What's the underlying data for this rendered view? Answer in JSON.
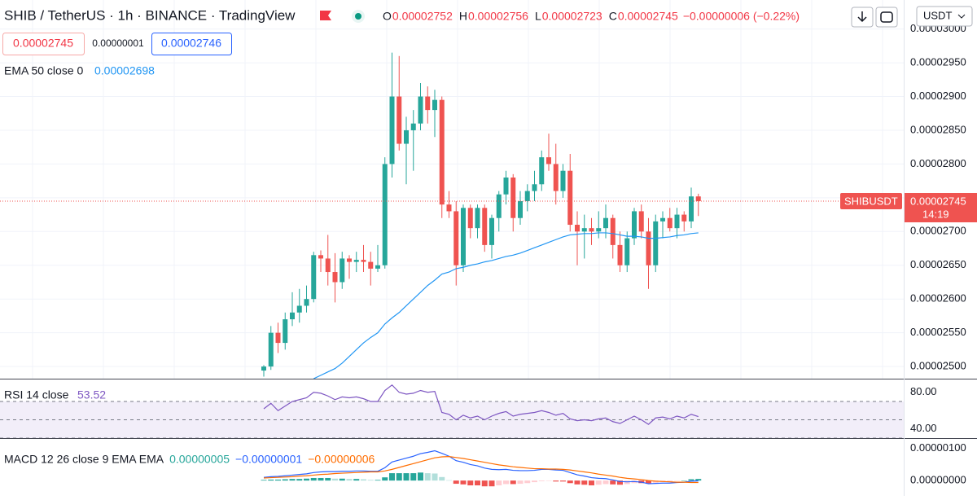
{
  "header": {
    "symbol": "SHIB / TetherUS · 1h · BINANCE · TradingView",
    "ohlc": [
      {
        "key": "O",
        "value": "0.00002752"
      },
      {
        "key": "H",
        "value": "0.00002756"
      },
      {
        "key": "L",
        "value": "0.00002723"
      },
      {
        "key": "C",
        "value": "0.00002745"
      }
    ],
    "change": "−0.00000006 (−0.22%)",
    "sell": "0.00002745",
    "spread": "0.00000001",
    "buy": "0.00002746",
    "currency": "USDT"
  },
  "chart_data": [
    {
      "type": "candlestick",
      "symbol_tag": "SHIBUSDT",
      "last_label": "0.00002745",
      "countdown": "14:19",
      "color_up": "#26a69a",
      "color_down": "#ef5350",
      "open": [
        2.494e-05,
        2.5e-05,
        2.55e-05,
        2.535e-05,
        2.57e-05,
        2.58e-05,
        2.59e-05,
        2.6e-05,
        2.665e-05,
        2.66e-05,
        2.64e-05,
        2.625e-05,
        2.66e-05,
        2.655e-05,
        2.658e-05,
        2.655e-05,
        2.645e-05,
        2.65e-05,
        2.8e-05,
        2.9e-05,
        2.83e-05,
        2.85e-05,
        2.86e-05,
        2.9e-05,
        2.88e-05,
        2.895e-05,
        2.74e-05,
        2.73e-05,
        2.65e-05,
        2.735e-05,
        2.705e-05,
        2.735e-05,
        2.68e-05,
        2.72e-05,
        2.755e-05,
        2.78e-05,
        2.72e-05,
        2.745e-05,
        2.76e-05,
        2.77e-05,
        2.81e-05,
        2.8e-05,
        2.76e-05,
        2.79e-05,
        2.71e-05,
        2.7e-05,
        2.705e-05,
        2.7e-05,
        2.705e-05,
        2.72e-05,
        2.68e-05,
        2.65e-05,
        2.69e-05,
        2.73e-05,
        2.7e-05,
        2.65e-05,
        2.715e-05,
        2.72e-05,
        2.705e-05,
        2.725e-05,
        2.715e-05,
        2.752e-05
      ],
      "high": [
        2.502e-05,
        2.56e-05,
        2.565e-05,
        2.58e-05,
        2.61e-05,
        2.615e-05,
        2.62e-05,
        2.67e-05,
        2.672e-05,
        2.695e-05,
        2.668e-05,
        2.67e-05,
        2.665e-05,
        2.67e-05,
        2.68e-05,
        2.67e-05,
        2.68e-05,
        2.81e-05,
        2.965e-05,
        2.96e-05,
        2.87e-05,
        2.88e-05,
        2.92e-05,
        2.915e-05,
        2.91e-05,
        2.9e-05,
        2.76e-05,
        2.745e-05,
        2.74e-05,
        2.74e-05,
        2.74e-05,
        2.74e-05,
        2.725e-05,
        2.76e-05,
        2.79e-05,
        2.785e-05,
        2.76e-05,
        2.77e-05,
        2.79e-05,
        2.82e-05,
        2.845e-05,
        2.83e-05,
        2.8e-05,
        2.815e-05,
        2.73e-05,
        2.725e-05,
        2.72e-05,
        2.73e-05,
        2.74e-05,
        2.725e-05,
        2.7e-05,
        2.7e-05,
        2.735e-05,
        2.74e-05,
        2.72e-05,
        2.725e-05,
        2.73e-05,
        2.735e-05,
        2.735e-05,
        2.73e-05,
        2.765e-05,
        2.756e-05
      ],
      "low": [
        2.485e-05,
        2.495e-05,
        2.52e-05,
        2.525e-05,
        2.56e-05,
        2.565e-05,
        2.58e-05,
        2.595e-05,
        2.64e-05,
        2.62e-05,
        2.595e-05,
        2.615e-05,
        2.63e-05,
        2.64e-05,
        2.64e-05,
        2.62e-05,
        2.64e-05,
        2.645e-05,
        2.78e-05,
        2.82e-05,
        2.77e-05,
        2.79e-05,
        2.85e-05,
        2.86e-05,
        2.84e-05,
        2.72e-05,
        2.72e-05,
        2.62e-05,
        2.64e-05,
        2.69e-05,
        2.69e-05,
        2.67e-05,
        2.66e-05,
        2.7e-05,
        2.74e-05,
        2.7e-05,
        2.71e-05,
        2.73e-05,
        2.745e-05,
        2.76e-05,
        2.79e-05,
        2.74e-05,
        2.75e-05,
        2.7e-05,
        2.65e-05,
        2.66e-05,
        2.68e-05,
        2.69e-05,
        2.69e-05,
        2.66e-05,
        2.64e-05,
        2.64e-05,
        2.68e-05,
        2.69e-05,
        2.615e-05,
        2.64e-05,
        2.69e-05,
        2.7e-05,
        2.69e-05,
        2.7e-05,
        2.705e-05,
        2.723e-05
      ],
      "close": [
        2.5e-05,
        2.55e-05,
        2.535e-05,
        2.57e-05,
        2.58e-05,
        2.59e-05,
        2.6e-05,
        2.665e-05,
        2.66e-05,
        2.64e-05,
        2.625e-05,
        2.66e-05,
        2.655e-05,
        2.658e-05,
        2.655e-05,
        2.645e-05,
        2.65e-05,
        2.8e-05,
        2.9e-05,
        2.83e-05,
        2.85e-05,
        2.86e-05,
        2.9e-05,
        2.88e-05,
        2.895e-05,
        2.74e-05,
        2.73e-05,
        2.65e-05,
        2.735e-05,
        2.705e-05,
        2.735e-05,
        2.68e-05,
        2.72e-05,
        2.755e-05,
        2.78e-05,
        2.72e-05,
        2.745e-05,
        2.76e-05,
        2.77e-05,
        2.81e-05,
        2.8e-05,
        2.76e-05,
        2.79e-05,
        2.71e-05,
        2.7e-05,
        2.705e-05,
        2.7e-05,
        2.705e-05,
        2.72e-05,
        2.68e-05,
        2.65e-05,
        2.69e-05,
        2.73e-05,
        2.7e-05,
        2.65e-05,
        2.715e-05,
        2.72e-05,
        2.705e-05,
        2.725e-05,
        2.715e-05,
        2.752e-05,
        2.745e-05
      ],
      "ema": {
        "name": "EMA 50 close 0",
        "value_label": "0.00002698",
        "color": "#2196f3",
        "values": [
          null,
          null,
          null,
          null,
          null,
          null,
          null,
          2.482e-05,
          2.487e-05,
          2.492e-05,
          2.497e-05,
          2.505e-05,
          2.515e-05,
          2.525e-05,
          2.535e-05,
          2.543e-05,
          2.55e-05,
          2.563e-05,
          2.572e-05,
          2.58e-05,
          2.59e-05,
          2.6e-05,
          2.61e-05,
          2.62e-05,
          2.628e-05,
          2.637e-05,
          2.64e-05,
          2.645e-05,
          2.647e-05,
          2.65e-05,
          2.652e-05,
          2.655e-05,
          2.657e-05,
          2.66e-05,
          2.663e-05,
          2.665e-05,
          2.668e-05,
          2.672e-05,
          2.676e-05,
          2.68e-05,
          2.684e-05,
          2.688e-05,
          2.692e-05,
          2.695e-05,
          2.696e-05,
          2.697e-05,
          2.697e-05,
          2.698e-05,
          2.698e-05,
          2.697e-05,
          2.695e-05,
          2.693e-05,
          2.693e-05,
          2.692e-05,
          2.69e-05,
          2.69e-05,
          2.691e-05,
          2.692e-05,
          2.694e-05,
          2.695e-05,
          2.697e-05,
          2.698e-05
        ]
      },
      "ylim": [
        2.482e-05,
        3.043e-05
      ],
      "yticks": [
        {
          "value": 3e-05,
          "label": "0.00003000"
        },
        {
          "value": 2.95e-05,
          "label": "0.00002950"
        },
        {
          "value": 2.9e-05,
          "label": "0.00002900"
        },
        {
          "value": 2.85e-05,
          "label": "0.00002850"
        },
        {
          "value": 2.8e-05,
          "label": "0.00002800"
        },
        {
          "value": 2.75e-05,
          "label": "0.00002750"
        },
        {
          "value": 2.7e-05,
          "label": "0.00002700"
        },
        {
          "value": 2.65e-05,
          "label": "0.00002650"
        },
        {
          "value": 2.6e-05,
          "label": "0.00002600"
        },
        {
          "value": 2.55e-05,
          "label": "0.00002550"
        },
        {
          "value": 2.5e-05,
          "label": "0.00002500"
        }
      ],
      "grid": true
    },
    {
      "type": "line",
      "name": "RSI 14 close",
      "value_label": "53.52",
      "color": "#7e57c2",
      "values": [
        62,
        68,
        60,
        65,
        70,
        72,
        74,
        80,
        79,
        76,
        72,
        75,
        74,
        75,
        73,
        70,
        70,
        82,
        88,
        80,
        78,
        79,
        82,
        80,
        81,
        58,
        56,
        50,
        55,
        52,
        54,
        50,
        54,
        57,
        59,
        54,
        56,
        57,
        58,
        60,
        58,
        55,
        57,
        51,
        49,
        50,
        49,
        51,
        52,
        48,
        46,
        50,
        54,
        50,
        45,
        52,
        53,
        51,
        54,
        52,
        56,
        53.52
      ],
      "bands": [
        30,
        50,
        70
      ],
      "ylim": [
        30,
        94
      ],
      "yticks": [
        {
          "value": 80,
          "label": "80.00"
        },
        {
          "value": 40,
          "label": "40.00"
        }
      ]
    },
    {
      "type": "macd",
      "name": "MACD 12 26 close 9 EMA EMA",
      "histogram": {
        "value_label": "0.00000005",
        "color": "#26a69a",
        "values": [
          2e-08,
          3e-08,
          3e-08,
          4e-08,
          5e-08,
          5e-08,
          6e-08,
          8e-08,
          8e-08,
          8e-08,
          6e-08,
          6e-08,
          5e-08,
          5e-08,
          4e-08,
          2e-08,
          2e-08,
          1e-07,
          2.3e-07,
          2.3e-07,
          2.3e-07,
          2.3e-07,
          2.5e-07,
          2.3e-07,
          2.2e-07,
          1.1e-07,
          1e-08,
          -1e-07,
          -1.2e-07,
          -1.5e-07,
          -1.5e-07,
          -1.8e-07,
          -1.8e-07,
          -1.5e-07,
          -1.1e-07,
          -1.1e-07,
          -1e-07,
          -8e-08,
          -5e-08,
          -2e-08,
          -1e-08,
          -3e-08,
          -3e-08,
          -8e-08,
          -1.2e-07,
          -1.3e-07,
          -1.5e-07,
          -1.3e-07,
          -1.1e-07,
          -1.2e-07,
          -1.3e-07,
          -1.1e-07,
          -8e-08,
          -8e-08,
          -1e-07,
          -7e-08,
          -5e-08,
          -4e-08,
          -1e-08,
          0,
          4e-08,
          5e-08
        ]
      },
      "series": [
        {
          "name": "MACD",
          "value_label": "−0.00000001",
          "color": "#2962ff",
          "values": [
            1e-07,
            1.2e-07,
            1.3e-07,
            1.5e-07,
            1.7e-07,
            1.9e-07,
            2.1e-07,
            2.5e-07,
            2.7e-07,
            2.8e-07,
            2.8e-07,
            2.9e-07,
            2.9e-07,
            3e-07,
            3e-07,
            2.9e-07,
            2.9e-07,
            4e-07,
            5.8e-07,
            6.4e-07,
            7e-07,
            7.6e-07,
            8.4e-07,
            8.8e-07,
            9.3e-07,
            8.5e-07,
            7.6e-07,
            6.2e-07,
            5.7e-07,
            5e-07,
            4.6e-07,
            3.9e-07,
            3.5e-07,
            3.4e-07,
            3.5e-07,
            3.2e-07,
            3.1e-07,
            3.1e-07,
            3.2e-07,
            3.5e-07,
            3.5e-07,
            3.3e-07,
            3.2e-07,
            2.5e-07,
            1.8e-07,
            1.4e-07,
            9e-08,
            7e-08,
            6e-08,
            2e-08,
            -3e-08,
            -4e-08,
            -3e-08,
            -5e-08,
            -1e-07,
            -9e-08,
            -8e-08,
            -8e-08,
            -6e-08,
            -5e-08,
            -2e-08,
            -1e-08
          ]
        },
        {
          "name": "Signal",
          "value_label": "−0.00000006",
          "color": "#ff6d00",
          "values": [
            8e-08,
            9e-08,
            1e-07,
            1.1e-07,
            1.2e-07,
            1.4e-07,
            1.5e-07,
            1.7e-07,
            1.9e-07,
            2e-07,
            2.2e-07,
            2.3e-07,
            2.4e-07,
            2.5e-07,
            2.6e-07,
            2.7e-07,
            2.7e-07,
            3e-07,
            3.5e-07,
            4.1e-07,
            4.7e-07,
            5.3e-07,
            5.9e-07,
            6.5e-07,
            7.1e-07,
            7.4e-07,
            7.5e-07,
            7.2e-07,
            6.9e-07,
            6.5e-07,
            6.1e-07,
            5.7e-07,
            5.3e-07,
            4.9e-07,
            4.6e-07,
            4.3e-07,
            4.1e-07,
            3.9e-07,
            3.7e-07,
            3.7e-07,
            3.6e-07,
            3.6e-07,
            3.5e-07,
            3.3e-07,
            3e-07,
            2.7e-07,
            2.4e-07,
            2e-07,
            1.7e-07,
            1.4e-07,
            1e-07,
            7e-08,
            5e-08,
            3e-08,
            0,
            -2e-08,
            -3e-08,
            -4e-08,
            -5e-08,
            -5e-08,
            -6e-08,
            -6e-08
          ]
        }
      ],
      "ylim": [
        -4.8e-07,
        1.3e-06
      ],
      "yticks": [
        {
          "value": 1e-06,
          "label": "0.00000100"
        },
        {
          "value": 0,
          "label": "0.00000000"
        }
      ]
    }
  ]
}
